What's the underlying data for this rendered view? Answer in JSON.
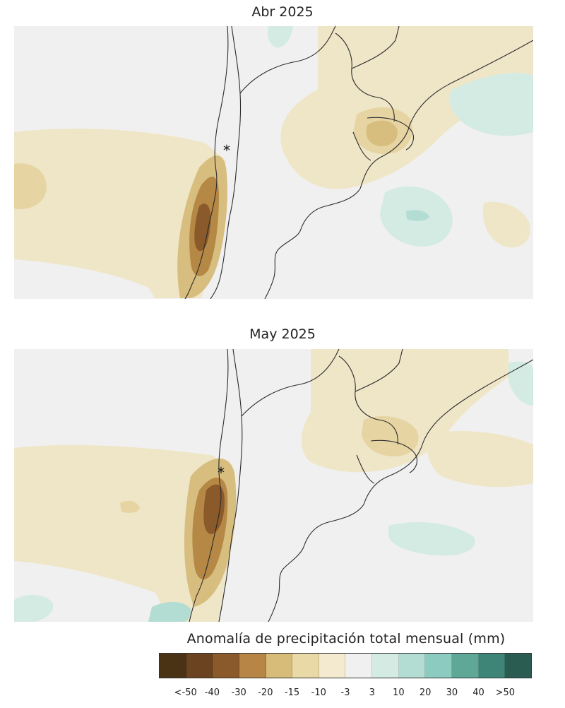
{
  "panels": [
    {
      "title": "Abr 2025"
    },
    {
      "title": "May 2025"
    }
  ],
  "colorbar": {
    "title": "Anomalía de precipitación total mensual (mm)",
    "labels": [
      "<-50",
      "-40",
      "-30",
      "-20",
      "-15",
      "-10",
      "-3",
      "3",
      "10",
      "20",
      "30",
      "40",
      ">50"
    ],
    "colors": [
      "#4a3314",
      "#6b4320",
      "#8a5a2b",
      "#b78647",
      "#d6bc78",
      "#e9d9a6",
      "#f3ead0",
      "#f0f0f0",
      "#d3ebe3",
      "#b3ddd3",
      "#8ccbbf",
      "#5fa897",
      "#3f8577",
      "#2a5c52"
    ]
  },
  "marker": {
    "symbol": "*"
  }
}
